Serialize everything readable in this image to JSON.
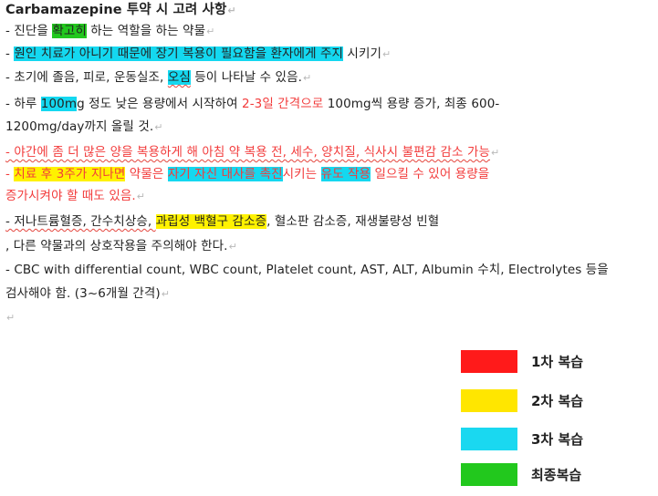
{
  "document": {
    "title": "Carbamazepine",
    "title_suffix": " 투약 시 고려 사항",
    "para_mark": "↵",
    "lines": {
      "l1": [
        "- 진단을 ",
        "확고히",
        " 하는 역할을 하는 약물"
      ],
      "l2": [
        "- ",
        "원인 치료가 아니기 때문에 장기 복용이 필요함을 환자에게 주지",
        " 시키기"
      ],
      "l3": [
        "- 초기에 졸음, 피로, 운동실조, ",
        "오심",
        " 등이 나타날 수 있음."
      ],
      "l4": [
        "- 하루 ",
        "100m",
        "g 정도 낮은 용량에서 시작하여 ",
        "2-3일 간격으로",
        " 100mg씩 용량 증가, 최종 600-"
      ],
      "l5": [
        "1200mg/day까지 올릴 것."
      ],
      "l6": [
        "- 야간에 좀 더 많은 양을 복용하게 해 아침 약 복용 전, 세수, 양치질, 식사시 불편감 감소 가능"
      ],
      "l7": [
        "- ",
        "치료 후 3주가 지나면",
        " 약물은 ",
        "자기 자신 대사를 촉진",
        "시키는 ",
        "유도 작용",
        " 일으킬 수 있어 용량을"
      ],
      "l8": [
        "증가시켜야 할 때도 있음."
      ],
      "l9": [
        "- 저나트륨혈증, 간수치상승, ",
        "과립성 백혈구 감소증",
        ", 혈소판 감소증, 재생불량성 빈혈"
      ],
      "l10": [
        ", 다른 약물과의 상호작용을 주의해야 한다."
      ],
      "l11": [
        "- CBC with differential count, WBC count, Platelet count, AST, ALT, Albumin 수치, Electrolytes 등을"
      ],
      "l12": [
        "검사해야 함. (3~6개월 간격)"
      ]
    }
  },
  "legend": [
    {
      "label": "1차 복습",
      "color": "#ff1a1a"
    },
    {
      "label": "2차 복습",
      "color": "#ffe600"
    },
    {
      "label": "3차 복습",
      "color": "#1ad8f0"
    },
    {
      "label": "최종복습",
      "color": "#22c81d"
    }
  ]
}
